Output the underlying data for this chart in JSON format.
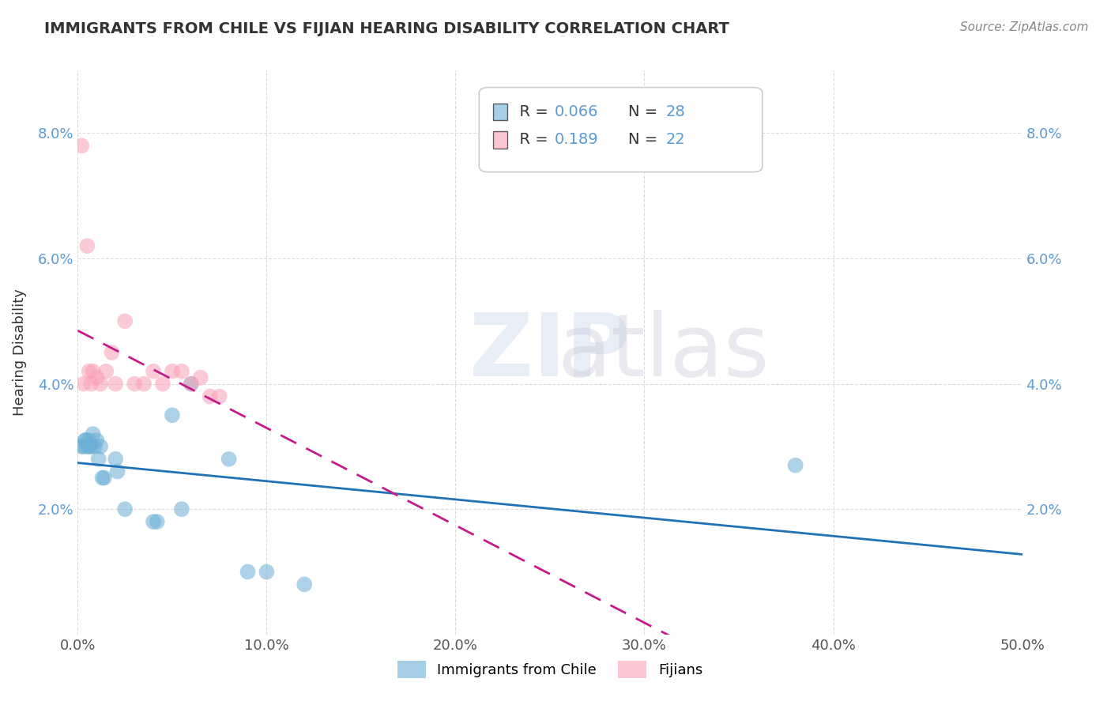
{
  "title": "IMMIGRANTS FROM CHILE VS FIJIAN HEARING DISABILITY CORRELATION CHART",
  "source": "Source: ZipAtlas.com",
  "xlabel": "",
  "ylabel": "Hearing Disability",
  "xlim": [
    0.0,
    0.5
  ],
  "ylim": [
    0.0,
    0.09
  ],
  "xticks": [
    0.0,
    0.1,
    0.2,
    0.3,
    0.4,
    0.5
  ],
  "xticklabels": [
    "0.0%",
    "10.0%",
    "20.0%",
    "30.0%",
    "40.0%",
    "50.0%"
  ],
  "yticks": [
    0.0,
    0.02,
    0.04,
    0.06,
    0.08
  ],
  "yticklabels": [
    "",
    "2.0%",
    "4.0%",
    "6.0%",
    "8.0%"
  ],
  "legend_r1": "R = 0.066",
  "legend_n1": "N = 28",
  "legend_r2": "R = 0.189",
  "legend_n2": "N = 22",
  "blue_color": "#6baed6",
  "pink_color": "#fa9fb5",
  "blue_line_color": "#2171b5",
  "pink_line_color": "#c51b8a",
  "watermark": "ZIPatlas",
  "blue_x": [
    0.002,
    0.003,
    0.004,
    0.004,
    0.005,
    0.006,
    0.006,
    0.007,
    0.008,
    0.009,
    0.01,
    0.011,
    0.012,
    0.013,
    0.014,
    0.02,
    0.021,
    0.025,
    0.04,
    0.042,
    0.05,
    0.055,
    0.06,
    0.08,
    0.09,
    0.1,
    0.12,
    0.38
  ],
  "blue_y": [
    0.03,
    0.03,
    0.031,
    0.031,
    0.03,
    0.03,
    0.031,
    0.03,
    0.032,
    0.03,
    0.031,
    0.028,
    0.03,
    0.025,
    0.025,
    0.028,
    0.026,
    0.02,
    0.018,
    0.018,
    0.035,
    0.02,
    0.04,
    0.028,
    0.01,
    0.01,
    0.008,
    0.027
  ],
  "pink_x": [
    0.002,
    0.003,
    0.005,
    0.006,
    0.007,
    0.008,
    0.01,
    0.012,
    0.015,
    0.018,
    0.02,
    0.025,
    0.03,
    0.035,
    0.04,
    0.045,
    0.05,
    0.055,
    0.06,
    0.065,
    0.07,
    0.075
  ],
  "pink_y": [
    0.078,
    0.04,
    0.062,
    0.042,
    0.04,
    0.042,
    0.041,
    0.04,
    0.042,
    0.045,
    0.04,
    0.05,
    0.04,
    0.04,
    0.042,
    0.04,
    0.042,
    0.042,
    0.04,
    0.041,
    0.038,
    0.038
  ]
}
